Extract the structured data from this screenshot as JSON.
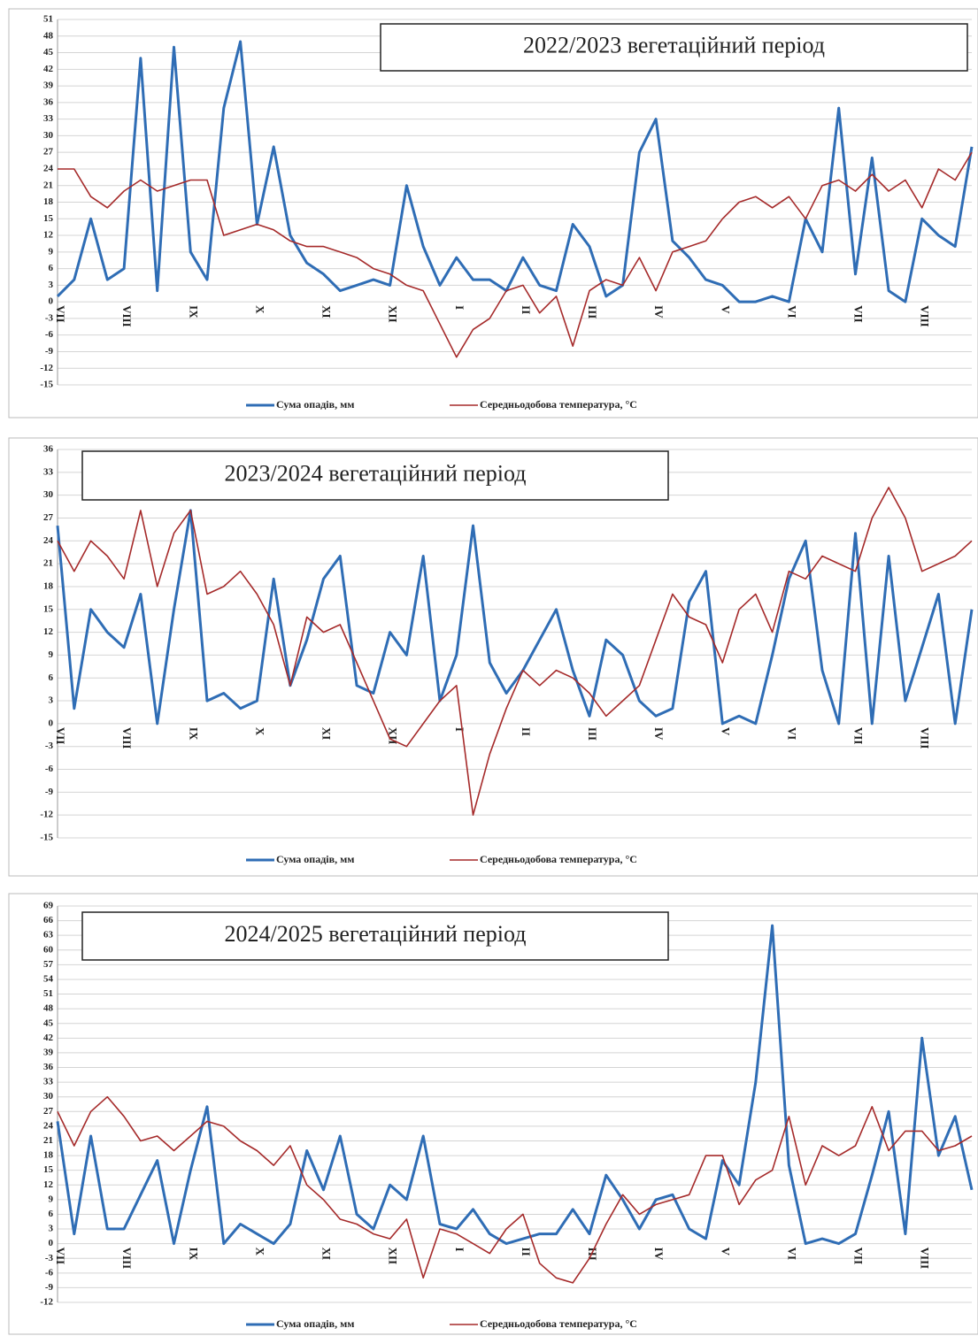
{
  "chart_data": [
    {
      "type": "line",
      "title": "2022/2023 вегетаційний період",
      "categories": [
        "VII",
        null,
        null,
        null,
        "VIII",
        null,
        null,
        null,
        "IX",
        null,
        null,
        null,
        "X",
        null,
        null,
        null,
        "XI",
        null,
        null,
        null,
        "XII",
        null,
        null,
        null,
        "I",
        null,
        null,
        null,
        "II",
        null,
        null,
        null,
        "III",
        null,
        null,
        null,
        "IV",
        null,
        null,
        null,
        "V",
        null,
        null,
        null,
        "VI",
        null,
        null,
        null,
        "VII",
        null,
        null,
        null,
        "VIII",
        null,
        null,
        null
      ],
      "series": [
        {
          "name": "Сума опадів, мм",
          "color": "#2f6db5",
          "values": [
            1,
            4,
            15,
            4,
            6,
            44,
            2,
            46,
            9,
            4,
            35,
            47,
            14,
            28,
            12,
            7,
            5,
            2,
            3,
            4,
            3,
            21,
            10,
            3,
            8,
            4,
            4,
            2,
            8,
            3,
            2,
            14,
            10,
            1,
            3,
            27,
            33,
            11,
            8,
            4,
            3,
            0,
            0,
            1,
            0,
            15,
            9,
            35,
            5,
            26,
            2,
            0,
            15,
            12,
            10,
            28
          ]
        },
        {
          "name": "Середньодобова температура, °C",
          "color": "#a52a2a",
          "values": [
            24,
            24,
            19,
            17,
            20,
            22,
            20,
            21,
            22,
            22,
            12,
            13,
            14,
            13,
            11,
            10,
            10,
            9,
            8,
            6,
            5,
            3,
            2,
            -4,
            -10,
            -5,
            -3,
            2,
            3,
            -2,
            1,
            -8,
            2,
            4,
            3,
            8,
            2,
            9,
            10,
            11,
            15,
            18,
            19,
            17,
            19,
            15,
            21,
            22,
            20,
            23,
            20,
            22,
            17,
            24,
            22,
            27
          ]
        }
      ],
      "ylim": [
        -15,
        51
      ],
      "yticks": [
        -15,
        -12,
        -9,
        -6,
        -3,
        0,
        3,
        6,
        9,
        12,
        15,
        18,
        21,
        24,
        27,
        30,
        33,
        36,
        39,
        42,
        45,
        48,
        51
      ],
      "grid": true,
      "legend": "bottom"
    },
    {
      "type": "line",
      "title": "2023/2024 вегетаційний період",
      "categories": [
        "VII",
        null,
        null,
        null,
        "VIII",
        null,
        null,
        null,
        "IX",
        null,
        null,
        null,
        "X",
        null,
        null,
        null,
        "XI",
        null,
        null,
        null,
        "XII",
        null,
        null,
        null,
        "I",
        null,
        null,
        null,
        "II",
        null,
        null,
        null,
        "III",
        null,
        null,
        null,
        "IV",
        null,
        null,
        null,
        "V",
        null,
        null,
        null,
        "VI",
        null,
        null,
        null,
        "VII",
        null,
        null,
        null,
        "VIII",
        null,
        null,
        null
      ],
      "series": [
        {
          "name": "Сума опадів, мм",
          "color": "#2f6db5",
          "values": [
            26,
            2,
            15,
            12,
            10,
            17,
            0,
            15,
            28,
            3,
            4,
            2,
            3,
            19,
            5,
            11,
            19,
            22,
            5,
            4,
            12,
            9,
            22,
            3,
            9,
            26,
            8,
            4,
            7,
            11,
            15,
            7,
            1,
            11,
            9,
            3,
            1,
            2,
            16,
            20,
            0,
            1,
            0,
            9,
            19,
            24,
            7,
            0,
            25,
            0,
            22,
            3,
            10,
            17,
            0,
            15
          ]
        },
        {
          "name": "Середньодобова температура, °C",
          "color": "#a52a2a",
          "values": [
            24,
            20,
            24,
            22,
            19,
            28,
            18,
            25,
            28,
            17,
            18,
            20,
            17,
            13,
            5,
            14,
            12,
            13,
            8,
            3,
            -2,
            -3,
            0,
            3,
            5,
            -12,
            -4,
            2,
            7,
            5,
            7,
            6,
            4,
            1,
            3,
            5,
            11,
            17,
            14,
            13,
            8,
            15,
            17,
            12,
            20,
            19,
            22,
            21,
            20,
            27,
            31,
            27,
            20,
            21,
            22,
            24
          ]
        }
      ],
      "ylim": [
        -15,
        36
      ],
      "yticks": [
        -15,
        -12,
        -9,
        -6,
        -3,
        0,
        3,
        6,
        9,
        12,
        15,
        18,
        21,
        24,
        27,
        30,
        33,
        36
      ],
      "grid": true,
      "legend": "bottom"
    },
    {
      "type": "line",
      "title": "2024/2025 вегетаційний період",
      "categories": [
        "VII",
        null,
        null,
        null,
        "VIII",
        null,
        null,
        null,
        "IX",
        null,
        null,
        null,
        "X",
        null,
        null,
        null,
        "XI",
        null,
        null,
        null,
        "XII",
        null,
        null,
        null,
        "I",
        null,
        null,
        null,
        "II",
        null,
        null,
        null,
        "III",
        null,
        null,
        null,
        "IV",
        null,
        null,
        null,
        "V",
        null,
        null,
        null,
        "VI",
        null,
        null,
        null,
        "VII",
        null,
        null,
        null,
        "VIII",
        null,
        null,
        null
      ],
      "series": [
        {
          "name": "Сума опадів, мм",
          "color": "#2f6db5",
          "values": [
            25,
            2,
            22,
            3,
            3,
            10,
            17,
            0,
            15,
            28,
            0,
            4,
            2,
            0,
            4,
            19,
            11,
            22,
            6,
            3,
            12,
            9,
            22,
            4,
            3,
            7,
            2,
            0,
            1,
            2,
            2,
            7,
            2,
            14,
            9,
            3,
            9,
            10,
            3,
            1,
            17,
            12,
            33,
            65,
            16,
            0,
            1,
            0,
            2,
            14,
            27,
            2,
            42,
            18,
            26,
            11
          ]
        },
        {
          "name": "Середньодобова температура, °C",
          "color": "#a52a2a",
          "values": [
            27,
            20,
            27,
            30,
            26,
            21,
            22,
            19,
            22,
            25,
            24,
            21,
            19,
            16,
            20,
            12,
            9,
            5,
            4,
            2,
            1,
            5,
            -7,
            3,
            2,
            0,
            -2,
            3,
            6,
            -4,
            -7,
            -8,
            -3,
            4,
            10,
            6,
            8,
            9,
            10,
            18,
            18,
            8,
            13,
            15,
            26,
            12,
            20,
            18,
            20,
            28,
            19,
            23,
            23,
            19,
            20,
            22
          ]
        }
      ],
      "ylim": [
        -12,
        69
      ],
      "yticks": [
        -12,
        -9,
        -6,
        -3,
        0,
        3,
        6,
        9,
        12,
        15,
        18,
        21,
        24,
        27,
        30,
        33,
        36,
        39,
        42,
        45,
        48,
        51,
        54,
        57,
        60,
        63,
        66,
        69
      ],
      "grid": true,
      "legend": "bottom"
    }
  ]
}
